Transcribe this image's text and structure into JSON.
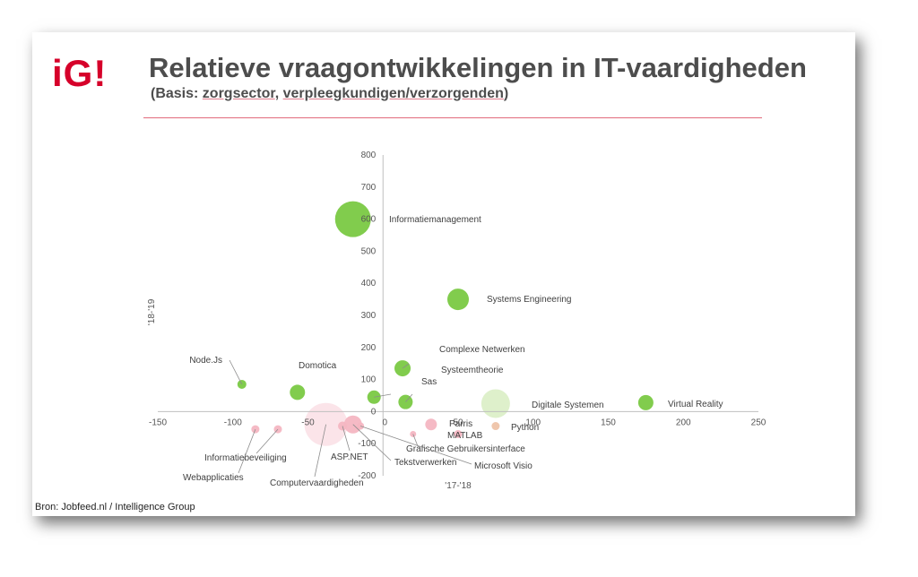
{
  "header": {
    "logo_text": "iG!",
    "title": "Relatieve vraagontwikkelingen in IT-vaardigheden",
    "subtitle_open": "(Basis: ",
    "subtitle_part1": "zorgsector",
    "subtitle_sep": ", ",
    "subtitle_part2": "verpleegkundigen/verzorgenden",
    "subtitle_close": ")"
  },
  "footer": {
    "source": "Bron: Jobfeed.nl / Intelligence Group"
  },
  "colors": {
    "rising": "#7ac943",
    "rising_light": "#dcefc8",
    "falling": "#f4b6c2",
    "falling_light": "#fbe3e8",
    "neutral": "#eec3a8",
    "accent": "#d6002a",
    "rule": "#e26b7c"
  },
  "chart_data": {
    "type": "scatter",
    "title": "",
    "xlabel": "'17-'18",
    "ylabel": "'18-'19",
    "xlim": [
      -150,
      250
    ],
    "ylim": [
      -200,
      800
    ],
    "xticks": [
      -150,
      -100,
      -50,
      0,
      50,
      100,
      150,
      200,
      250
    ],
    "yticks": [
      -200,
      -100,
      0,
      100,
      200,
      300,
      400,
      500,
      600,
      700,
      800
    ],
    "grid": false,
    "legend": "none",
    "points": [
      {
        "label": "Informatiemanagement",
        "x": -20,
        "y": 600,
        "r": 20,
        "group": "rising"
      },
      {
        "label": "Systems Engineering",
        "x": 50,
        "y": 350,
        "r": 12,
        "group": "rising"
      },
      {
        "label": "Complexe Netwerken",
        "x": 13,
        "y": 135,
        "r": 9,
        "group": "rising"
      },
      {
        "label": "Systeemtheorie",
        "x": 15,
        "y": 30,
        "r": 8,
        "group": "rising"
      },
      {
        "label": "Sas",
        "x": -6,
        "y": 45,
        "r": 7.5,
        "group": "rising"
      },
      {
        "label": "Digitale Systemen",
        "x": 75,
        "y": 25,
        "r": 16,
        "group": "rising_light"
      },
      {
        "label": "Virtual Reality",
        "x": 175,
        "y": 28,
        "r": 8.5,
        "group": "rising"
      },
      {
        "label": "Node.Js",
        "x": -94,
        "y": 85,
        "r": 5,
        "group": "rising"
      },
      {
        "label": "Domotica",
        "x": -57,
        "y": 60,
        "r": 8.5,
        "group": "rising"
      },
      {
        "label": "Parris",
        "x": 32,
        "y": -40,
        "r": 6.5,
        "group": "falling"
      },
      {
        "label": "MATLAB",
        "x": 50,
        "y": -70,
        "r": 4.5,
        "group": "falling"
      },
      {
        "label": "Python",
        "x": 75,
        "y": -45,
        "r": 4.5,
        "group": "neutral"
      },
      {
        "label": "Grafische Gebruikersinterface",
        "x": 20,
        "y": -70,
        "r": 3.5,
        "group": "falling"
      },
      {
        "label": "ASP.NET",
        "x": -27,
        "y": -45,
        "r": 5,
        "group": "falling"
      },
      {
        "label": "Tekstverwerken",
        "x": -20,
        "y": -40,
        "r": 10,
        "group": "falling"
      },
      {
        "label": "Microsoft Visio",
        "x": -15,
        "y": -45,
        "r": 4,
        "group": "falling"
      },
      {
        "label": "Computervaardigheden",
        "x": -38,
        "y": -40,
        "r": 24,
        "group": "falling_light"
      },
      {
        "label": "Informatiebeveiliging",
        "x": -70,
        "y": -55,
        "r": 4.5,
        "group": "falling"
      },
      {
        "label": "Webapplicaties",
        "x": -85,
        "y": -55,
        "r": 4.5,
        "group": "falling"
      }
    ]
  }
}
